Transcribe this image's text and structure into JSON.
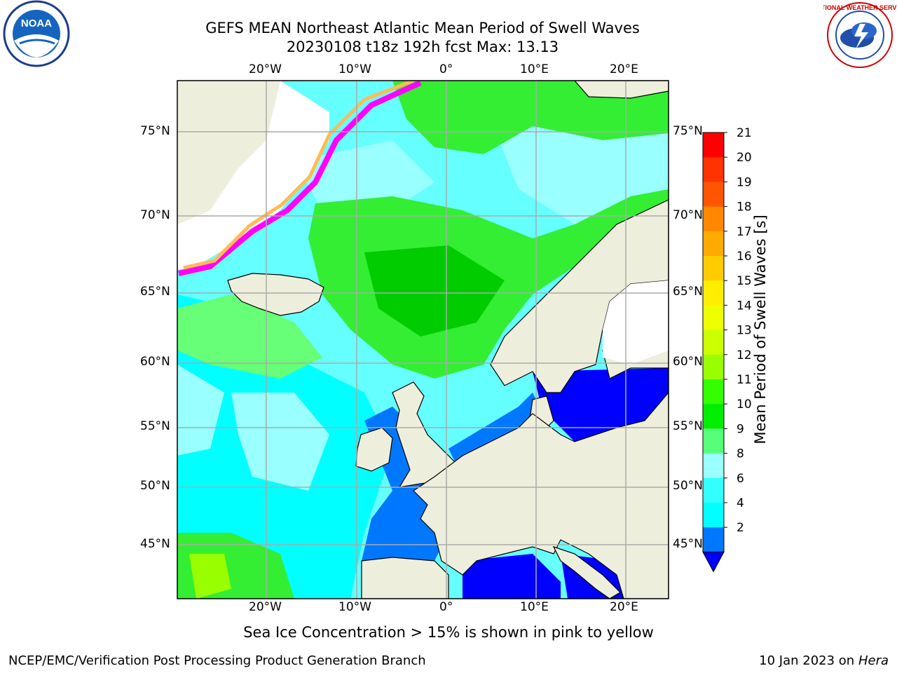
{
  "header": {
    "title_line1": "GEFS MEAN Northeast Atlantic Mean Period of Swell Waves",
    "title_line2": "20230108 t18z 192h fcst   Max: 13.13"
  },
  "logos": {
    "left": "NOAA",
    "right": "NATIONAL WEATHER SERVICE"
  },
  "map": {
    "lon_labels": [
      "20°W",
      "10°W",
      "0°",
      "10°E",
      "20°E"
    ],
    "lat_labels": [
      "75°N",
      "70°N",
      "65°N",
      "60°N",
      "55°N",
      "50°N",
      "45°N"
    ],
    "colors": {
      "ocean_low": "#00ffff",
      "ocean_mid": "#99ffff",
      "swell_green": "#00e600",
      "swell_lightgreen": "#66ff66",
      "baltic_blue": "#0000ff",
      "land": "#eeeedd",
      "ice_pink": "#ff00ff",
      "ice_yellow": "#ffdd66",
      "grid": "#aaaaaa"
    }
  },
  "colorbar": {
    "label": "Mean Period of Swell Waves [s]",
    "ticks": [
      "21",
      "20",
      "19",
      "18",
      "17",
      "16",
      "15",
      "14",
      "13",
      "12",
      "11",
      "10",
      "9",
      "8",
      "6",
      "4",
      "2"
    ],
    "colors": [
      "#ff0000",
      "#ff3300",
      "#ff5500",
      "#ff8800",
      "#ffaa00",
      "#ffcc00",
      "#ffee00",
      "#eeff00",
      "#ccff00",
      "#99ff00",
      "#33ff00",
      "#00ee00",
      "#55ff77",
      "#99ffff",
      "#33ffff",
      "#00ffff",
      "#0077ff"
    ],
    "extend_color": "#0000ff"
  },
  "notes": {
    "sea_ice": "Sea Ice Concentration > 15% is shown in pink to yellow"
  },
  "footer": {
    "left": "NCEP/EMC/Verification Post Processing Product Generation Branch",
    "right_prefix": "10 Jan 2023 on ",
    "right_host": "Hera"
  }
}
